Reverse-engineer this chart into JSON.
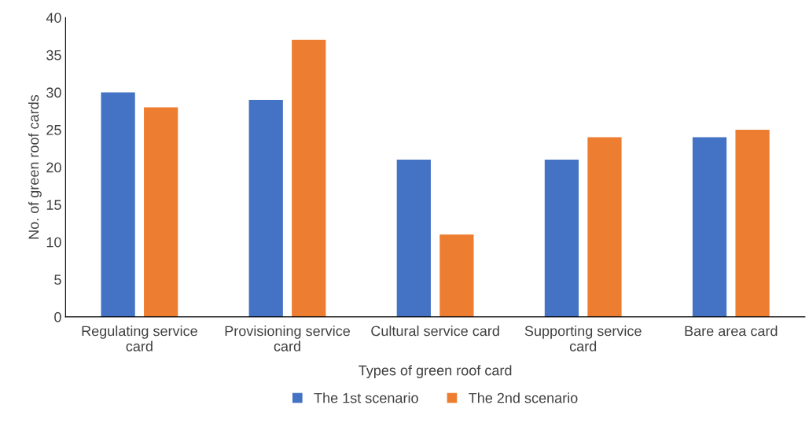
{
  "chart_data": {
    "type": "bar",
    "xlabel": "Types of green roof card",
    "ylabel": "No. of green roof cards",
    "categories": [
      "Regulating service card",
      "Provisioning service card",
      "Cultural service card",
      "Supporting service card",
      "Bare area card"
    ],
    "series": [
      {
        "name": "The 1st scenario",
        "color": "#4472c4",
        "values": [
          30,
          29,
          21,
          21,
          24
        ]
      },
      {
        "name": "The 2nd scenario",
        "color": "#ed7d31",
        "values": [
          28,
          37,
          11,
          24,
          25
        ]
      }
    ],
    "ylim": [
      0,
      40
    ],
    "yticks": [
      0,
      5,
      10,
      15,
      20,
      25,
      30,
      35,
      40
    ],
    "grid": false,
    "legend": "bottom"
  }
}
